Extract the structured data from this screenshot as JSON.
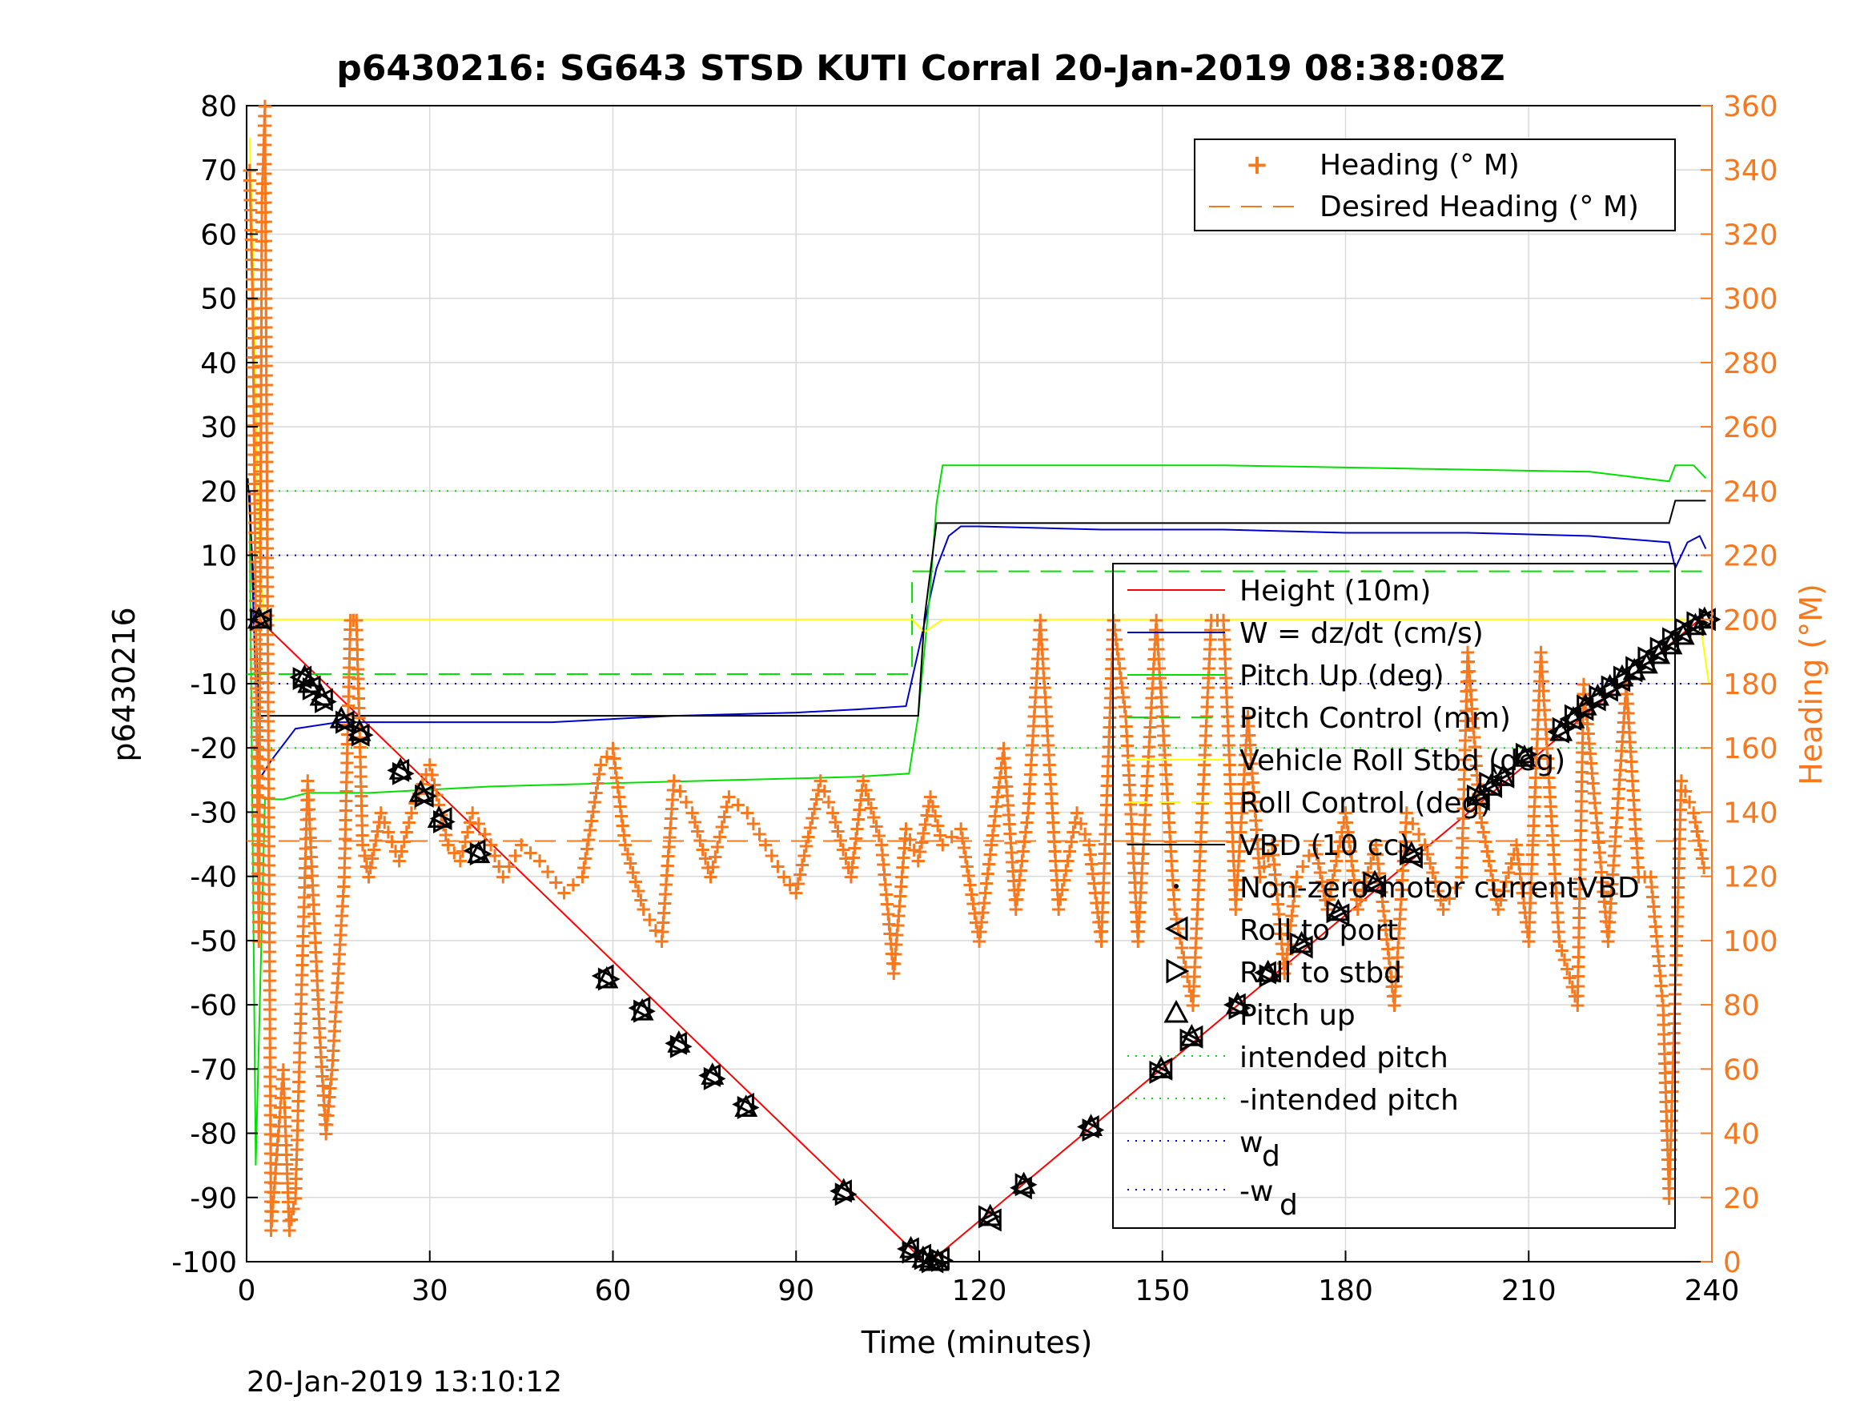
{
  "chart_data": {
    "type": "line",
    "title": "p6430216: SG643 STSD KUTI Corral 20-Jan-2019 08:38:08Z",
    "xlabel": "Time (minutes)",
    "ylabel": "p6430216",
    "y2label": "Heading (°M)",
    "xlim": [
      0,
      240
    ],
    "ylim": [
      -100,
      80
    ],
    "y2lim": [
      0,
      360
    ],
    "xticks": [
      0,
      30,
      60,
      90,
      120,
      150,
      180,
      210,
      240
    ],
    "yticks": [
      -100,
      -90,
      -80,
      -70,
      -60,
      -50,
      -40,
      -30,
      -20,
      -10,
      0,
      10,
      20,
      30,
      40,
      50,
      60,
      70,
      80
    ],
    "y2ticks": [
      0,
      20,
      40,
      60,
      80,
      100,
      120,
      140,
      160,
      180,
      200,
      220,
      240,
      260,
      280,
      300,
      320,
      340,
      360
    ],
    "grid": true,
    "footer": "20-Jan-2019 13:10:12",
    "colors": {
      "height": "#FF0000",
      "w": "#0000CC",
      "pitch": "#00E000",
      "pitch_control": "#00E000",
      "roll": "#FFFF00",
      "vbd": "#000000",
      "heading": "#F47920",
      "axis_right": "#F47920"
    },
    "legend_top": {
      "placement": "top-right",
      "entries": [
        "Heading (° M)",
        "Desired Heading (° M)"
      ]
    },
    "legend_main": {
      "placement": "right",
      "entries": [
        "Height (10m)",
        "W = dz/dt (cm/s)",
        "Pitch Up (deg)",
        "Pitch Control (mm)",
        "Vehicle Roll Stbd (deg)",
        "Roll Control (deg)",
        "VBD (10 cc)",
        "Non-zero motor currentVBD",
        "Roll to port",
        "Roll to stbd",
        "Pitch up",
        "intended pitch",
        "-intended pitch",
        "w",
        "-w"
      ],
      "subscript": "d"
    },
    "series": [
      {
        "name": "Height (10m)",
        "axis": "left",
        "x": [
          0,
          2,
          111,
          112,
          238
        ],
        "y": [
          0,
          0,
          -100,
          -100,
          0
        ]
      },
      {
        "name": "W = dz/dt (cm/s)",
        "axis": "left",
        "x": [
          0.5,
          1.5,
          2,
          4,
          8,
          15,
          30,
          50,
          70,
          90,
          100,
          108,
          110,
          113,
          115,
          117,
          120,
          140,
          160,
          180,
          200,
          220,
          233,
          234,
          236,
          238,
          239
        ],
        "y": [
          20,
          -10,
          -25,
          -22,
          -17,
          -16,
          -16,
          -16,
          -15,
          -14.5,
          -14,
          -13.5,
          -5,
          8,
          13,
          14.5,
          14.5,
          14,
          14,
          13.5,
          13.5,
          13,
          12,
          8,
          12,
          13,
          11
        ]
      },
      {
        "name": "Pitch Up (deg)",
        "axis": "left",
        "x": [
          0.5,
          1.5,
          3,
          6,
          10,
          20,
          40,
          60,
          80,
          100,
          108.5,
          110,
          112,
          113,
          114,
          116,
          130,
          160,
          190,
          220,
          233,
          234,
          237,
          239
        ],
        "y": [
          15,
          -85,
          -28,
          -28,
          -27,
          -27,
          -26,
          -25.5,
          -25,
          -24.5,
          -24,
          -15,
          5,
          18,
          24,
          24,
          24,
          24,
          23.5,
          23,
          21.5,
          24,
          24,
          22
        ]
      },
      {
        "name": "Pitch Control (mm)",
        "axis": "left",
        "x": [
          0,
          2,
          2,
          109,
          109,
          240
        ],
        "y": [
          -8.5,
          -8.5,
          -8.5,
          -8.5,
          7.5,
          7.5
        ]
      },
      {
        "name": "Vehicle Roll Stbd (deg)",
        "axis": "left",
        "x": [
          0.5,
          1,
          2,
          3,
          5,
          10,
          30,
          60,
          90,
          109,
          111,
          114,
          120,
          150,
          180,
          210,
          238,
          239.5
        ],
        "y": [
          75,
          60,
          10,
          0,
          0,
          0,
          0,
          0,
          0,
          0,
          -2,
          0,
          0,
          0,
          0,
          0,
          0,
          -10
        ]
      },
      {
        "name": "VBD (10 cc)",
        "axis": "left",
        "x": [
          0.2,
          1.5,
          2,
          110,
          111,
          113,
          233,
          234,
          239
        ],
        "y": [
          22,
          0,
          -15,
          -15,
          0,
          15,
          15,
          18.5,
          18.5
        ]
      },
      {
        "name": "intended pitch",
        "axis": "left",
        "x": [
          0,
          240
        ],
        "y": [
          20,
          20
        ]
      },
      {
        "name": "-intended pitch",
        "axis": "left",
        "x": [
          0,
          240
        ],
        "y": [
          -20,
          -20
        ]
      },
      {
        "name": "w",
        "axis": "left",
        "x": [
          0,
          240
        ],
        "y": [
          10,
          10
        ]
      },
      {
        "name": "-w",
        "axis": "left",
        "x": [
          0,
          240
        ],
        "y": [
          -10,
          -10
        ]
      },
      {
        "name": "Desired Heading (° M)",
        "axis": "right",
        "x": [
          0,
          240
        ],
        "y": [
          131,
          131
        ]
      },
      {
        "name": "Heading (° M)",
        "axis": "right",
        "x": [
          0.5,
          1,
          1.5,
          2,
          2.5,
          3,
          4,
          6,
          7,
          8,
          10,
          12,
          13,
          14,
          16,
          17,
          18,
          19,
          20,
          22,
          25,
          27,
          30,
          33,
          35,
          37,
          40,
          42,
          45,
          48,
          52,
          55,
          58,
          60,
          62,
          65,
          68,
          70,
          73,
          76,
          79,
          82,
          85,
          88,
          90,
          94,
          96,
          99,
          101,
          104,
          106,
          108,
          110,
          112,
          114,
          117,
          120,
          122,
          124,
          126,
          128,
          130,
          133,
          136,
          138,
          140,
          142,
          144,
          146,
          149,
          152,
          155,
          158,
          160,
          162,
          164,
          166,
          168,
          170,
          172,
          175,
          177,
          180,
          182,
          185,
          188,
          190,
          193,
          196,
          199,
          200,
          202,
          205,
          208,
          210,
          212,
          215,
          218,
          219,
          221,
          223,
          226,
          228,
          230,
          232,
          233,
          235,
          237,
          239
        ],
        "y": [
          340,
          300,
          200,
          100,
          330,
          360,
          10,
          60,
          10,
          20,
          150,
          70,
          40,
          60,
          120,
          200,
          200,
          130,
          120,
          140,
          125,
          140,
          155,
          130,
          125,
          140,
          130,
          120,
          130,
          125,
          115,
          120,
          155,
          160,
          130,
          110,
          100,
          150,
          140,
          120,
          145,
          140,
          130,
          120,
          115,
          150,
          140,
          120,
          150,
          130,
          90,
          135,
          125,
          145,
          130,
          135,
          100,
          130,
          160,
          110,
          140,
          200,
          110,
          140,
          130,
          100,
          200,
          170,
          100,
          200,
          110,
          80,
          200,
          200,
          110,
          170,
          120,
          130,
          90,
          120,
          130,
          110,
          140,
          110,
          130,
          80,
          140,
          130,
          110,
          120,
          190,
          140,
          110,
          130,
          100,
          190,
          100,
          80,
          180,
          140,
          100,
          180,
          120,
          120,
          80,
          20,
          150,
          140,
          120
        ]
      }
    ],
    "markers": {
      "pitch_up": {
        "x": [
          2,
          9.5,
          10.2,
          12.2,
          15.5,
          18.5,
          25.2,
          28.5,
          31.5,
          38,
          59,
          64.8,
          70.8,
          76.3,
          81.8,
          97.8,
          108.8,
          110.8,
          112,
          113.2,
          121.8,
          127.3,
          138.3,
          149.8,
          154.8,
          162.3,
          167.3,
          172.8,
          178.8,
          184.8,
          190.8,
          201.8,
          203.8,
          205.8,
          209.3,
          215.3,
          217.3,
          219.3,
          221.3,
          223.3,
          225.3,
          227.3,
          229.3,
          231.3,
          233.3,
          235.3,
          237.3,
          238.8
        ],
        "y": [
          0,
          -9,
          -10,
          -12,
          -15.5,
          -17.5,
          -23.5,
          -27,
          -31,
          -36.5,
          -56,
          -61,
          -66,
          -71,
          -76,
          -89,
          -98,
          -99.5,
          -100,
          -100,
          -93,
          -88,
          -79,
          -70,
          -65,
          -60,
          -55,
          -50.5,
          -45.5,
          -41,
          -36.5,
          -27.5,
          -26,
          -24.5,
          -21.5,
          -17.5,
          -15.5,
          -13.5,
          -12,
          -10.5,
          -9,
          -8,
          -7,
          -5.5,
          -4,
          -2.5,
          -1,
          0
        ]
      },
      "roll_to_port": {
        "x": [
          2.5,
          9,
          10.5,
          12.5,
          16,
          18.5,
          25,
          29,
          32,
          37.5,
          58.5,
          64.5,
          70.5,
          76,
          81.5,
          97.5,
          108.5,
          110.5,
          112.5,
          113.5,
          122,
          127,
          138,
          150,
          155,
          162,
          167,
          173,
          179,
          185,
          191,
          202,
          204,
          206,
          209,
          215,
          217,
          219,
          221,
          223,
          225,
          227,
          229,
          231,
          233,
          235,
          237,
          239
        ],
        "y": [
          0,
          -9,
          -10.5,
          -12.5,
          -16,
          -18,
          -23.5,
          -27.5,
          -31,
          -36,
          -55.5,
          -60.5,
          -66,
          -71,
          -75.5,
          -89,
          -98,
          -99,
          -100,
          -99.5,
          -93.5,
          -88.5,
          -79,
          -70,
          -65,
          -60,
          -55,
          -51,
          -46,
          -41.5,
          -37,
          -28,
          -26,
          -24.5,
          -21.5,
          -17.5,
          -15.5,
          -14,
          -12.5,
          -11,
          -9.5,
          -8,
          -6.5,
          -5,
          -3.5,
          -2,
          -0.8,
          0
        ]
      },
      "roll_to_stbd": {
        "x": [
          2.2,
          9.2,
          10.8,
          12.8,
          16.2,
          18.8,
          25.5,
          29.2,
          32.2,
          38.2,
          59.2,
          65,
          71,
          76.5,
          82,
          98,
          109,
          111,
          112.2,
          113.8,
          121.5,
          127.5,
          138.5,
          149.5,
          154.5,
          162.5,
          167.5,
          172.5,
          178.5,
          184.5,
          190.5,
          201.5,
          203.5,
          205.5,
          209.5,
          215.5,
          217.5,
          219.5,
          221.5,
          223.5,
          225.5,
          227.5,
          229.5,
          231.5,
          233.5,
          235.5,
          237.5,
          239.5
        ],
        "y": [
          0,
          -9.2,
          -10.8,
          -12.8,
          -16,
          -18,
          -24,
          -27.5,
          -31.5,
          -36.5,
          -56,
          -61,
          -66.5,
          -71.5,
          -76,
          -89.5,
          -98.5,
          -99.5,
          -100,
          -99.8,
          -93,
          -88,
          -79.5,
          -70.5,
          -65.5,
          -60.5,
          -55.5,
          -50.5,
          -45.5,
          -41,
          -36.5,
          -27.5,
          -25.5,
          -24,
          -21,
          -17,
          -15,
          -13.5,
          -12,
          -10.5,
          -9,
          -7.5,
          -6,
          -4.5,
          -3,
          -1.5,
          -0.5,
          0
        ]
      }
    }
  }
}
